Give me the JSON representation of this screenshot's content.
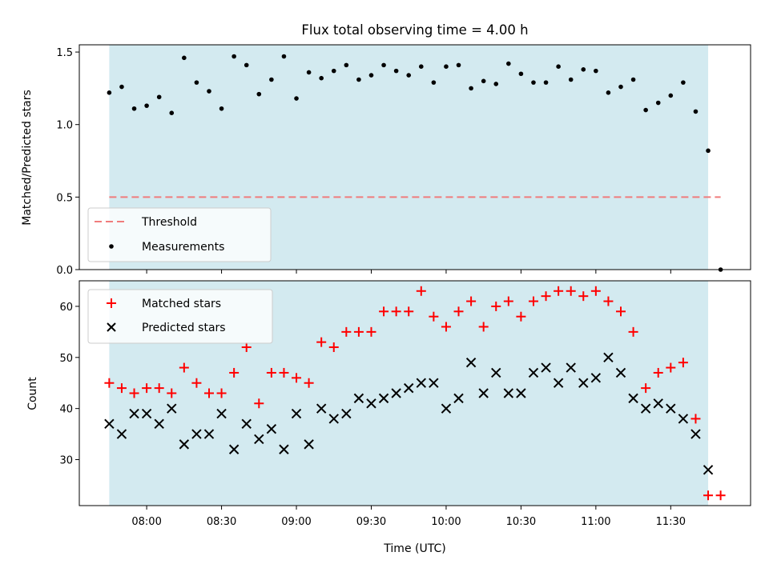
{
  "chart_data": [
    {
      "type": "scatter",
      "title": "Flux total observing time = 4.00 h",
      "xlabel": "",
      "ylabel": "Matched/Predicted stars",
      "ylim": [
        0.0,
        1.55
      ],
      "yticks": [
        "0.0",
        "0.5",
        "1.0",
        "1.5"
      ],
      "xlim": [
        "07:33",
        "12:02"
      ],
      "x_tick_labels": [],
      "shaded_span": {
        "start": "07:45",
        "end": "11:45",
        "color": "#d3eaf0"
      },
      "threshold": {
        "name": "Threshold",
        "y": 0.5,
        "x_start": "07:45",
        "x_end": "11:50",
        "color": "#f07c7c"
      },
      "series": [
        {
          "name": "Measurements",
          "color": "#000000",
          "marker": "dot",
          "x": [
            "07:45",
            "07:50",
            "07:55",
            "08:00",
            "08:05",
            "08:10",
            "08:15",
            "08:20",
            "08:25",
            "08:30",
            "08:35",
            "08:40",
            "08:45",
            "08:50",
            "08:55",
            "09:00",
            "09:05",
            "09:10",
            "09:15",
            "09:20",
            "09:25",
            "09:30",
            "09:35",
            "09:40",
            "09:45",
            "09:50",
            "09:55",
            "10:00",
            "10:05",
            "10:10",
            "10:15",
            "10:20",
            "10:25",
            "10:30",
            "10:35",
            "10:40",
            "10:45",
            "10:50",
            "10:55",
            "11:00",
            "11:05",
            "11:10",
            "11:15",
            "11:20",
            "11:25",
            "11:30",
            "11:35",
            "11:40",
            "11:45",
            "11:50"
          ],
          "y": [
            1.22,
            1.26,
            1.11,
            1.13,
            1.19,
            1.08,
            1.46,
            1.29,
            1.23,
            1.11,
            1.47,
            1.41,
            1.21,
            1.31,
            1.47,
            1.18,
            1.36,
            1.32,
            1.37,
            1.41,
            1.31,
            1.34,
            1.41,
            1.37,
            1.34,
            1.4,
            1.29,
            1.4,
            1.41,
            1.25,
            1.3,
            1.28,
            1.42,
            1.35,
            1.29,
            1.29,
            1.4,
            1.31,
            1.38,
            1.37,
            1.22,
            1.26,
            1.31,
            1.1,
            1.15,
            1.2,
            1.29,
            1.09,
            0.82,
            0.0
          ]
        }
      ],
      "legend": {
        "location": "lower-left",
        "entries": [
          "Threshold",
          "Measurements"
        ]
      }
    },
    {
      "type": "scatter",
      "title": "",
      "xlabel": "Time (UTC)",
      "ylabel": "Count",
      "ylim": [
        21,
        65
      ],
      "yticks": [
        "30",
        "40",
        "50",
        "60"
      ],
      "xlim": [
        "07:33",
        "12:02"
      ],
      "x_tick_labels": [
        "08:00",
        "08:30",
        "09:00",
        "09:30",
        "10:00",
        "10:30",
        "11:00",
        "11:30"
      ],
      "shaded_span": {
        "start": "07:45",
        "end": "11:45",
        "color": "#d3eaf0"
      },
      "series": [
        {
          "name": "Matched stars",
          "color": "#ff0000",
          "marker": "plus",
          "x": [
            "07:45",
            "07:50",
            "07:55",
            "08:00",
            "08:05",
            "08:10",
            "08:15",
            "08:20",
            "08:25",
            "08:30",
            "08:35",
            "08:40",
            "08:45",
            "08:50",
            "08:55",
            "09:00",
            "09:05",
            "09:10",
            "09:15",
            "09:20",
            "09:25",
            "09:30",
            "09:35",
            "09:40",
            "09:45",
            "09:50",
            "09:55",
            "10:00",
            "10:05",
            "10:10",
            "10:15",
            "10:20",
            "10:25",
            "10:30",
            "10:35",
            "10:40",
            "10:45",
            "10:50",
            "10:55",
            "11:00",
            "11:05",
            "11:10",
            "11:15",
            "11:20",
            "11:25",
            "11:30",
            "11:35",
            "11:40",
            "11:45",
            "11:50"
          ],
          "y": [
            45,
            44,
            43,
            44,
            44,
            43,
            48,
            45,
            43,
            43,
            47,
            52,
            41,
            47,
            47,
            46,
            45,
            53,
            52,
            55,
            55,
            55,
            59,
            59,
            59,
            63,
            58,
            56,
            59,
            61,
            56,
            60,
            61,
            58,
            61,
            62,
            63,
            63,
            62,
            63,
            61,
            59,
            55,
            44,
            47,
            48,
            49,
            38,
            23,
            23
          ]
        },
        {
          "name": "Predicted stars",
          "color": "#000000",
          "marker": "x",
          "x": [
            "07:45",
            "07:50",
            "07:55",
            "08:00",
            "08:05",
            "08:10",
            "08:15",
            "08:20",
            "08:25",
            "08:30",
            "08:35",
            "08:40",
            "08:45",
            "08:50",
            "08:55",
            "09:00",
            "09:05",
            "09:10",
            "09:15",
            "09:20",
            "09:25",
            "09:30",
            "09:35",
            "09:40",
            "09:45",
            "09:50",
            "09:55",
            "10:00",
            "10:05",
            "10:10",
            "10:15",
            "10:20",
            "10:25",
            "10:30",
            "10:35",
            "10:40",
            "10:45",
            "10:50",
            "10:55",
            "11:00",
            "11:05",
            "11:10",
            "11:15",
            "11:20",
            "11:25",
            "11:30",
            "11:35",
            "11:40",
            "11:45"
          ],
          "y": [
            37,
            35,
            39,
            39,
            37,
            40,
            33,
            35,
            35,
            39,
            32,
            37,
            34,
            36,
            32,
            39,
            33,
            40,
            38,
            39,
            42,
            41,
            42,
            43,
            44,
            45,
            45,
            40,
            42,
            49,
            43,
            47,
            43,
            43,
            47,
            48,
            45,
            48,
            45,
            46,
            50,
            47,
            42,
            40,
            41,
            40,
            38,
            35,
            28
          ]
        }
      ],
      "legend": {
        "location": "upper-left",
        "entries": [
          "Matched stars",
          "Predicted stars"
        ]
      }
    }
  ]
}
